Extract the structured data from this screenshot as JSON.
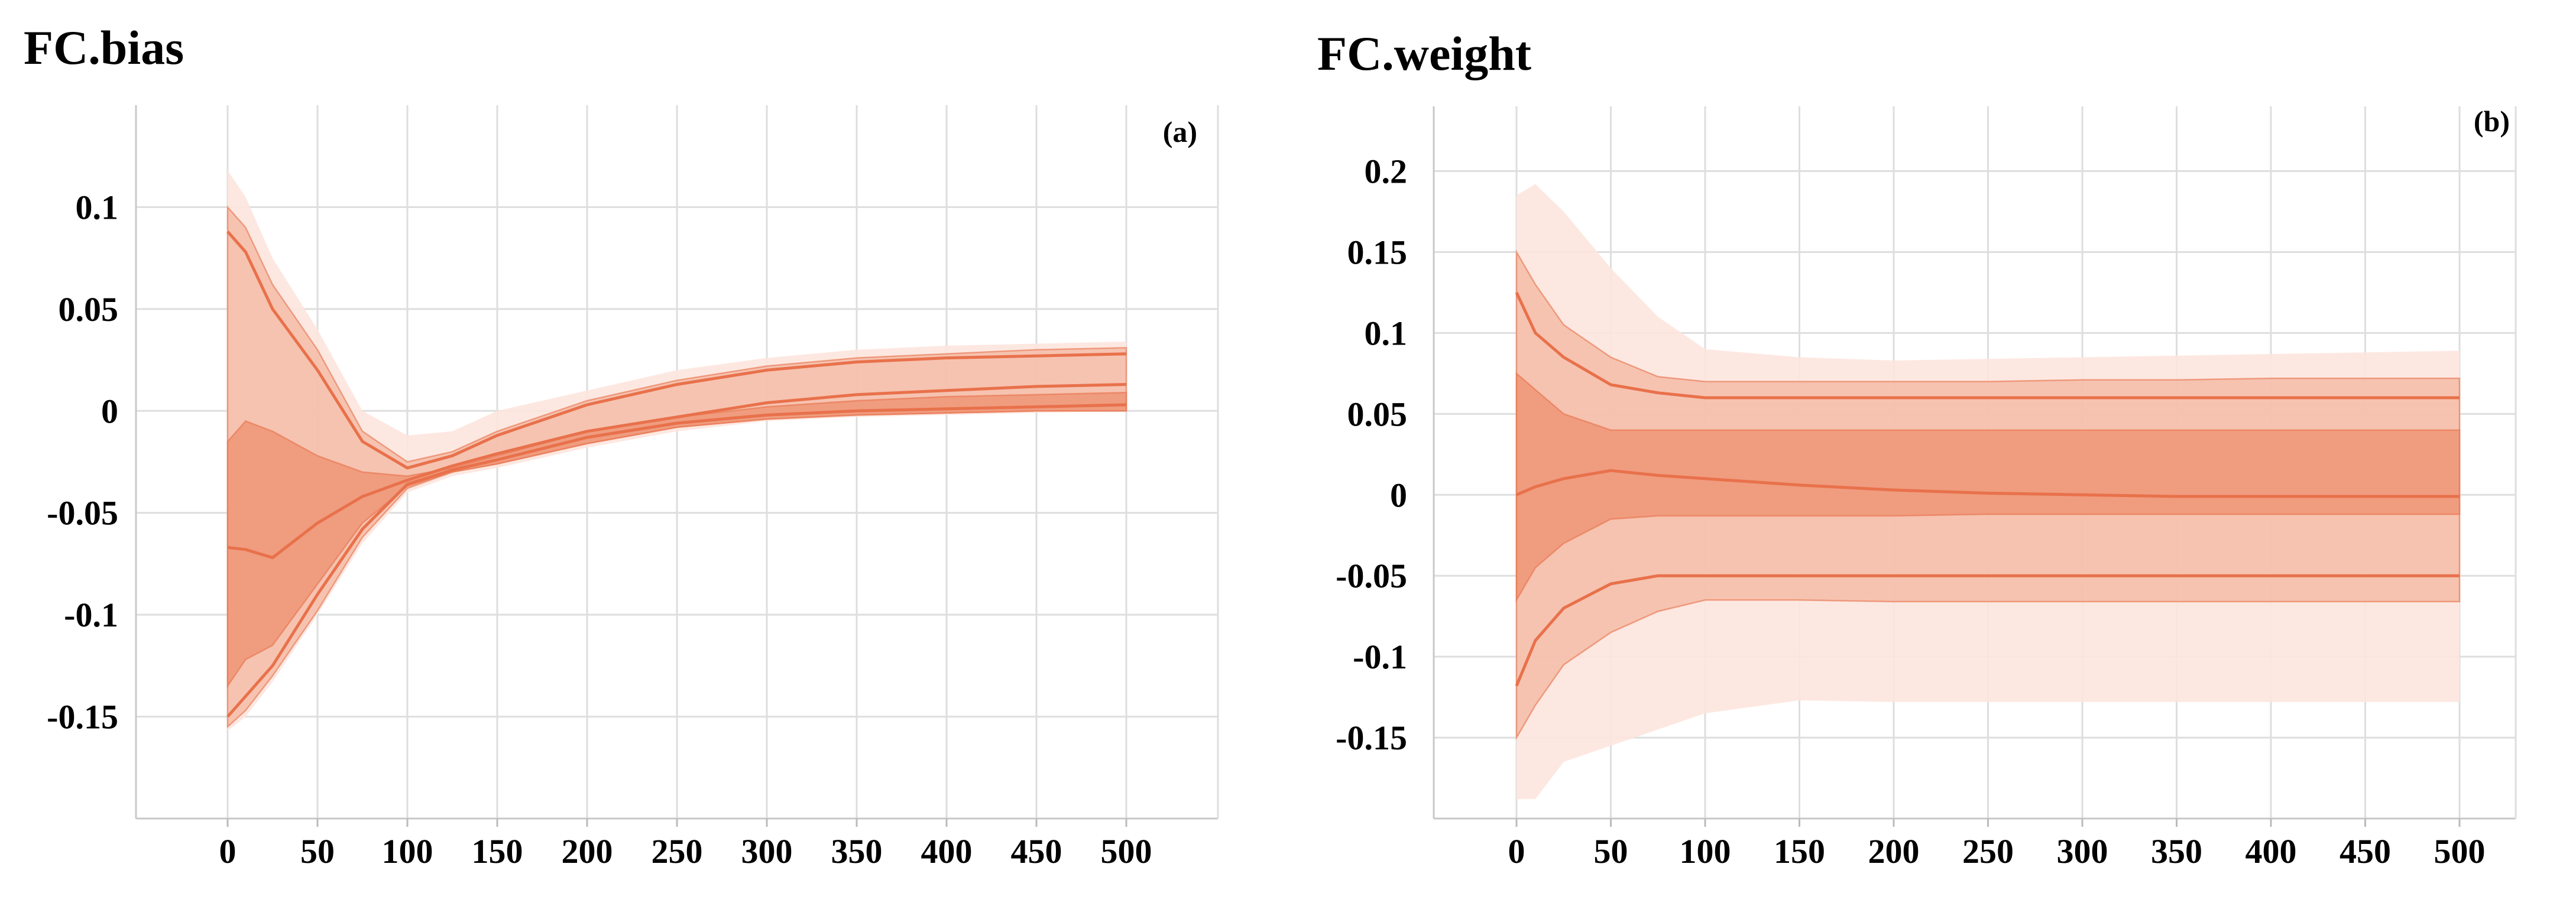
{
  "colors": {
    "band_outer": "#fde6de",
    "band_mid": "#f5bca7",
    "band_inner": "#ee9577",
    "line": "#e8714b",
    "grid": "#dedede",
    "text": "#000000"
  },
  "chart_data": [
    {
      "type": "area",
      "title": "FC.bias",
      "panel_label": "(a)",
      "xlabel": "",
      "ylabel": "",
      "xlim": [
        -50,
        550
      ],
      "ylim": [
        -0.2,
        0.15
      ],
      "x_ticks": [
        0,
        50,
        100,
        150,
        200,
        250,
        300,
        350,
        400,
        450,
        500
      ],
      "x_tick_labels": [
        "0",
        "50",
        "100",
        "150",
        "200",
        "250",
        "300",
        "350",
        "400",
        "450",
        "500"
      ],
      "y_ticks": [
        0.1,
        0.05,
        0,
        -0.05,
        -0.1,
        -0.15
      ],
      "y_tick_labels": [
        "0.1",
        "0.05",
        "0",
        "-0.05",
        "-0.1",
        "-0.15"
      ],
      "grid": true,
      "x": [
        0,
        10,
        25,
        50,
        75,
        100,
        125,
        150,
        200,
        250,
        300,
        350,
        400,
        450,
        500
      ],
      "bands": [
        {
          "name": "outer",
          "upper": [
            0.118,
            0.105,
            0.075,
            0.04,
            0.0,
            -0.012,
            -0.01,
            0.0,
            0.01,
            0.02,
            0.026,
            0.03,
            0.032,
            0.033,
            0.034
          ],
          "lower": [
            -0.157,
            -0.15,
            -0.133,
            -0.1,
            -0.065,
            -0.04,
            -0.032,
            -0.028,
            -0.018,
            -0.01,
            -0.005,
            -0.003,
            -0.002,
            -0.001,
            0.0
          ]
        },
        {
          "name": "mid",
          "upper": [
            0.1,
            0.09,
            0.062,
            0.03,
            -0.01,
            -0.025,
            -0.02,
            -0.01,
            0.005,
            0.015,
            0.022,
            0.026,
            0.028,
            0.03,
            0.031
          ],
          "lower": [
            -0.155,
            -0.147,
            -0.13,
            -0.098,
            -0.062,
            -0.038,
            -0.03,
            -0.026,
            -0.016,
            -0.008,
            -0.004,
            -0.002,
            -0.001,
            0.0,
            0.0
          ]
        },
        {
          "name": "inner",
          "upper": [
            -0.015,
            -0.005,
            -0.01,
            -0.022,
            -0.03,
            -0.032,
            -0.028,
            -0.022,
            -0.01,
            -0.003,
            0.002,
            0.005,
            0.007,
            0.008,
            0.009
          ],
          "lower": [
            -0.135,
            -0.122,
            -0.115,
            -0.085,
            -0.055,
            -0.037,
            -0.03,
            -0.026,
            -0.016,
            -0.008,
            -0.004,
            -0.002,
            -0.001,
            0.0,
            0.0
          ]
        }
      ],
      "lines": [
        {
          "name": "upper-mid",
          "values": [
            0.088,
            0.078,
            0.05,
            0.02,
            -0.015,
            -0.028,
            -0.022,
            -0.012,
            0.003,
            0.013,
            0.02,
            0.024,
            0.026,
            0.027,
            0.028
          ]
        },
        {
          "name": "median",
          "values": [
            -0.067,
            -0.068,
            -0.072,
            -0.055,
            -0.042,
            -0.034,
            -0.027,
            -0.021,
            -0.01,
            -0.003,
            0.004,
            0.008,
            0.01,
            0.012,
            0.013
          ]
        },
        {
          "name": "lower-mid",
          "values": [
            -0.15,
            -0.14,
            -0.125,
            -0.09,
            -0.058,
            -0.036,
            -0.029,
            -0.024,
            -0.013,
            -0.006,
            -0.002,
            0.0,
            0.001,
            0.002,
            0.003
          ]
        }
      ]
    },
    {
      "type": "area",
      "title": "FC.weight",
      "panel_label": "(b)",
      "xlabel": "",
      "ylabel": "",
      "xlim": [
        -50,
        550
      ],
      "ylim": [
        -0.2,
        0.24
      ],
      "x_ticks": [
        0,
        50,
        100,
        150,
        200,
        250,
        300,
        350,
        400,
        450,
        500
      ],
      "x_tick_labels": [
        "0",
        "50",
        "100",
        "150",
        "200",
        "250",
        "300",
        "350",
        "400",
        "450",
        "500"
      ],
      "y_ticks": [
        0.2,
        0.15,
        0.1,
        0.05,
        0,
        -0.05,
        -0.1,
        -0.15
      ],
      "y_tick_labels": [
        "0.2",
        "0.15",
        "0.1",
        "0.05",
        "0",
        "-0.05",
        "-0.1",
        "-0.15"
      ],
      "grid": true,
      "x": [
        0,
        10,
        25,
        50,
        75,
        100,
        150,
        200,
        250,
        300,
        350,
        400,
        450,
        500
      ],
      "bands": [
        {
          "name": "outer",
          "upper": [
            0.185,
            0.192,
            0.175,
            0.14,
            0.11,
            0.09,
            0.085,
            0.083,
            0.084,
            0.085,
            0.086,
            0.087,
            0.088,
            0.089
          ],
          "lower": [
            -0.188,
            -0.188,
            -0.165,
            -0.155,
            -0.145,
            -0.135,
            -0.127,
            -0.128,
            -0.128,
            -0.128,
            -0.128,
            -0.128,
            -0.128,
            -0.128
          ]
        },
        {
          "name": "mid",
          "upper": [
            0.15,
            0.13,
            0.105,
            0.085,
            0.073,
            0.07,
            0.07,
            0.07,
            0.07,
            0.071,
            0.071,
            0.072,
            0.072,
            0.072
          ],
          "lower": [
            -0.15,
            -0.13,
            -0.105,
            -0.085,
            -0.072,
            -0.065,
            -0.065,
            -0.066,
            -0.066,
            -0.066,
            -0.066,
            -0.066,
            -0.066,
            -0.066
          ]
        },
        {
          "name": "inner",
          "upper": [
            0.075,
            0.065,
            0.05,
            0.04,
            0.04,
            0.04,
            0.04,
            0.04,
            0.04,
            0.04,
            0.04,
            0.04,
            0.04,
            0.04
          ],
          "lower": [
            -0.065,
            -0.045,
            -0.03,
            -0.015,
            -0.013,
            -0.013,
            -0.013,
            -0.013,
            -0.012,
            -0.012,
            -0.012,
            -0.012,
            -0.012,
            -0.012
          ]
        }
      ],
      "lines": [
        {
          "name": "upper-mid",
          "values": [
            0.125,
            0.1,
            0.085,
            0.068,
            0.063,
            0.06,
            0.06,
            0.06,
            0.06,
            0.06,
            0.06,
            0.06,
            0.06,
            0.06
          ]
        },
        {
          "name": "median",
          "values": [
            0.0,
            0.005,
            0.01,
            0.015,
            0.012,
            0.01,
            0.006,
            0.003,
            0.001,
            0.0,
            -0.001,
            -0.001,
            -0.001,
            -0.001
          ]
        },
        {
          "name": "lower-mid",
          "values": [
            -0.118,
            -0.09,
            -0.07,
            -0.055,
            -0.05,
            -0.05,
            -0.05,
            -0.05,
            -0.05,
            -0.05,
            -0.05,
            -0.05,
            -0.05,
            -0.05
          ]
        }
      ]
    }
  ]
}
